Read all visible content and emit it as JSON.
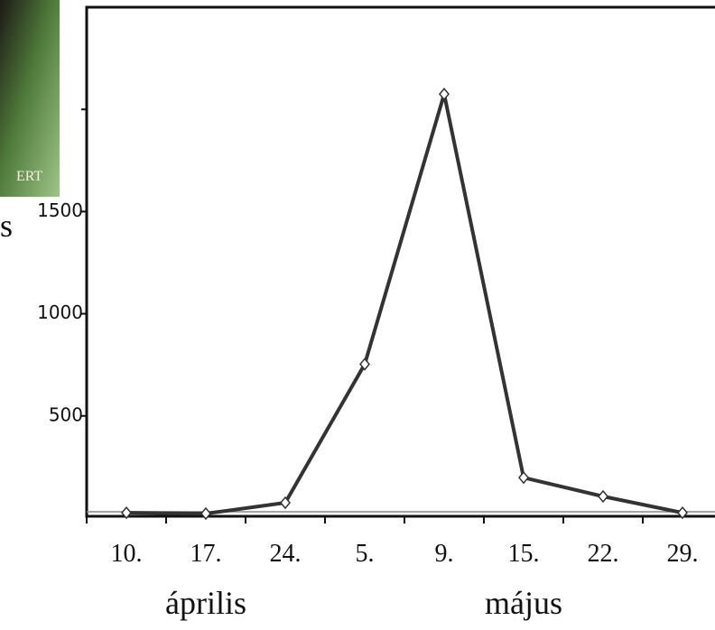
{
  "chart_data": {
    "type": "line",
    "y_label": "s",
    "photo_caption": "ERT",
    "categories": [
      "10.",
      "17.",
      "24.",
      "5.",
      "9.",
      "15.",
      "22.",
      "29."
    ],
    "groups": [
      {
        "label": "április",
        "from": 0,
        "to": 2
      },
      {
        "label": "május",
        "from": 3,
        "to": 7
      }
    ],
    "series": [
      {
        "color": "#333333",
        "values": [
          26,
          22,
          75,
          753,
          2075,
          198,
          106,
          26
        ]
      }
    ],
    "ylim": [
      0,
      2500
    ],
    "yticks": [
      500,
      1000,
      1500,
      {
        "value": 2000,
        "label": null
      }
    ]
  }
}
